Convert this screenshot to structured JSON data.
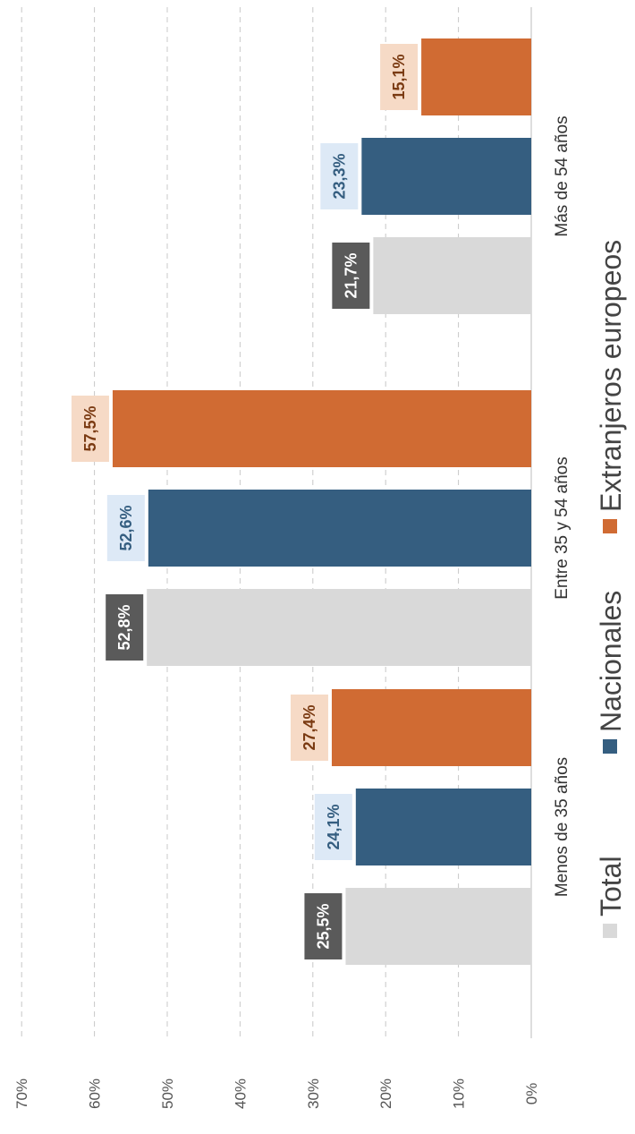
{
  "chart_data": {
    "type": "bar",
    "orientation": "rotated-90-clockwise",
    "categories": [
      "Menos de 35 años",
      "Entre 35 y 54 años",
      "Más de 54 años"
    ],
    "series": [
      {
        "name": "Total",
        "values": [
          25.5,
          52.8,
          21.7
        ],
        "labels": [
          "25,5%",
          "52,8%",
          "21,7%"
        ],
        "color": "#d9d9d9"
      },
      {
        "name": "Nacionales",
        "values": [
          24.1,
          52.6,
          23.3
        ],
        "labels": [
          "24,1%",
          "52,6%",
          "23,3%"
        ],
        "color": "#355e80"
      },
      {
        "name": "Extranjeros europeos",
        "values": [
          27.4,
          57.5,
          15.1
        ],
        "labels": [
          "27,4%",
          "57,5%",
          "15,1%"
        ],
        "color": "#d06b33"
      }
    ],
    "ylim": [
      0,
      70
    ],
    "y_ticks": [
      "0%",
      "10%",
      "20%",
      "30%",
      "40%",
      "50%",
      "60%",
      "70%"
    ],
    "grid": true,
    "legend_position": "bottom",
    "colors": {
      "total_label_bg": "#5a5a5a",
      "total_label_text": "#ffffff",
      "nac_label_bg": "#dde9f6",
      "nac_label_text": "#355e80",
      "ext_label_bg": "#f6dac6",
      "ext_label_text": "#7a3a12",
      "grid": "#c8c8c8"
    }
  }
}
